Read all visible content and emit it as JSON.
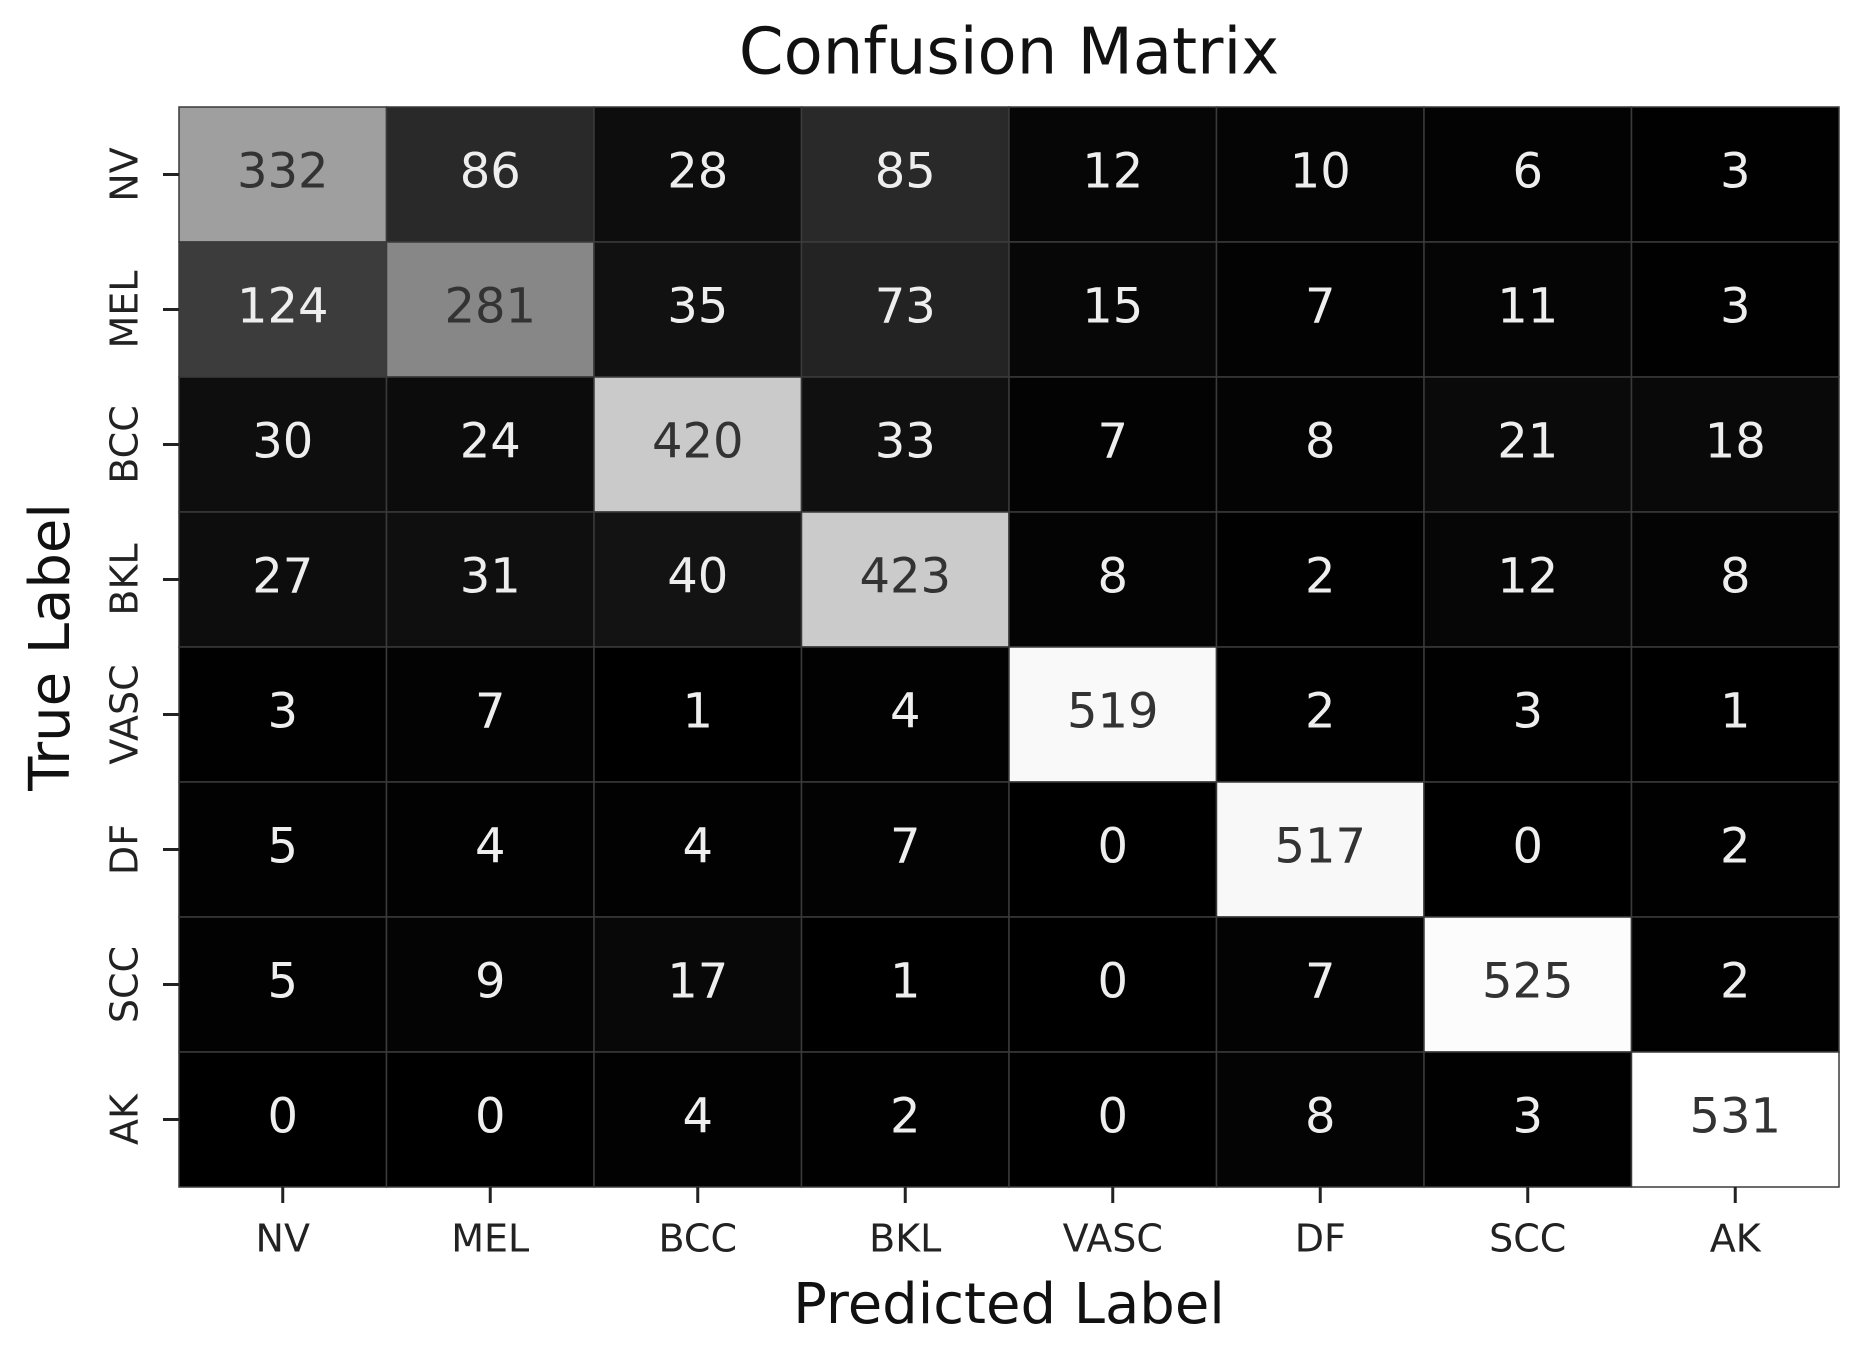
{
  "chart_data": {
    "type": "heatmap",
    "title": "Confusion Matrix",
    "xlabel": "Predicted Label",
    "ylabel": "True Label",
    "x_categories": [
      "NV",
      "MEL",
      "BCC",
      "BKL",
      "VASC",
      "DF",
      "SCC",
      "AK"
    ],
    "y_categories": [
      "NV",
      "MEL",
      "BCC",
      "BKL",
      "VASC",
      "DF",
      "SCC",
      "AK"
    ],
    "values": [
      [
        332,
        86,
        28,
        85,
        12,
        10,
        6,
        3
      ],
      [
        124,
        281,
        35,
        73,
        15,
        7,
        11,
        3
      ],
      [
        30,
        24,
        420,
        33,
        7,
        8,
        21,
        18
      ],
      [
        27,
        31,
        40,
        423,
        8,
        2,
        12,
        8
      ],
      [
        3,
        7,
        1,
        4,
        519,
        2,
        3,
        1
      ],
      [
        5,
        4,
        4,
        7,
        0,
        517,
        0,
        2
      ],
      [
        5,
        9,
        17,
        1,
        0,
        7,
        525,
        2
      ],
      [
        0,
        0,
        4,
        2,
        0,
        8,
        3,
        531
      ]
    ],
    "colors": [
      "#000000",
      "#ffffff"
    ]
  }
}
